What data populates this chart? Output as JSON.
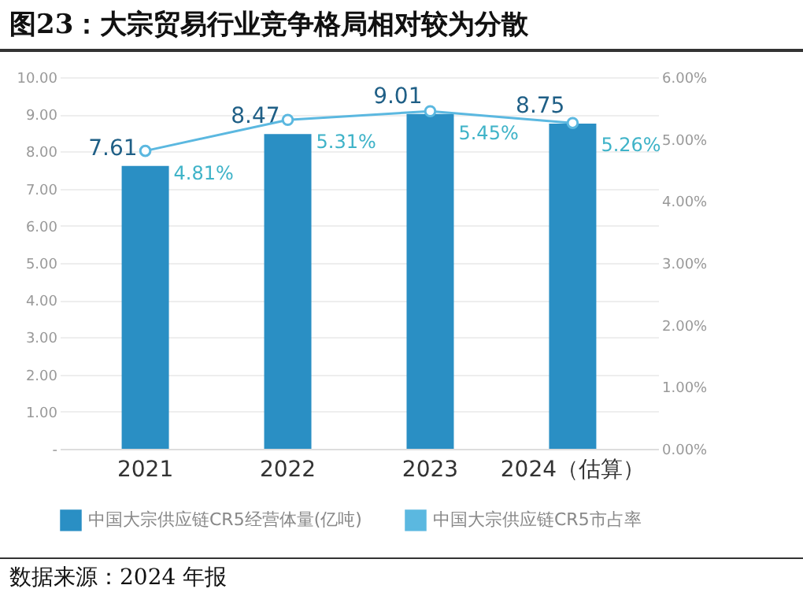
{
  "chart_data": {
    "type": "bar",
    "title": "图23：大宗贸易行业竞争格局相对较为分散",
    "categories": [
      "2021",
      "2022",
      "2023",
      "2024（估算）"
    ],
    "series": [
      {
        "name": "中国大宗供应链CR5经营体量(亿吨)",
        "color": "#2a8fc4",
        "values": [
          7.61,
          8.47,
          9.01,
          8.75
        ],
        "value_labels": [
          "7.61",
          "8.47",
          "9.01",
          "8.75"
        ]
      },
      {
        "name": "中国大宗供应链CR5市占率",
        "type": "line",
        "axis": "y2",
        "color": "#5bb8e0",
        "values": [
          4.81,
          5.31,
          5.45,
          5.26
        ],
        "value_labels": [
          "4.81%",
          "5.31%",
          "5.45%",
          "5.26%"
        ]
      }
    ],
    "ylim": [
      0,
      10
    ],
    "yticks": [
      {
        "value": 0,
        "label": "-"
      },
      {
        "value": 1,
        "label": "1.00"
      },
      {
        "value": 2,
        "label": "2.00"
      },
      {
        "value": 3,
        "label": "3.00"
      },
      {
        "value": 4,
        "label": "4.00"
      },
      {
        "value": 5,
        "label": "5.00"
      },
      {
        "value": 6,
        "label": "6.00"
      },
      {
        "value": 7,
        "label": "7.00"
      },
      {
        "value": 8,
        "label": "8.00"
      },
      {
        "value": 9,
        "label": "9.00"
      },
      {
        "value": 10,
        "label": "10.00"
      }
    ],
    "y2lim": [
      0,
      6
    ],
    "y2ticks": [
      {
        "value": 0,
        "label": "0.00%"
      },
      {
        "value": 1,
        "label": "1.00%"
      },
      {
        "value": 2,
        "label": "2.00%"
      },
      {
        "value": 3,
        "label": "3.00%"
      },
      {
        "value": 4,
        "label": "4.00%"
      },
      {
        "value": 5,
        "label": "5.00%"
      },
      {
        "value": 6,
        "label": "6.00%"
      }
    ],
    "grid": "y",
    "legend": "bottom",
    "marker": "circle",
    "line_style": "solid",
    "annotations": [
      "数据来源：2024 年报"
    ]
  }
}
